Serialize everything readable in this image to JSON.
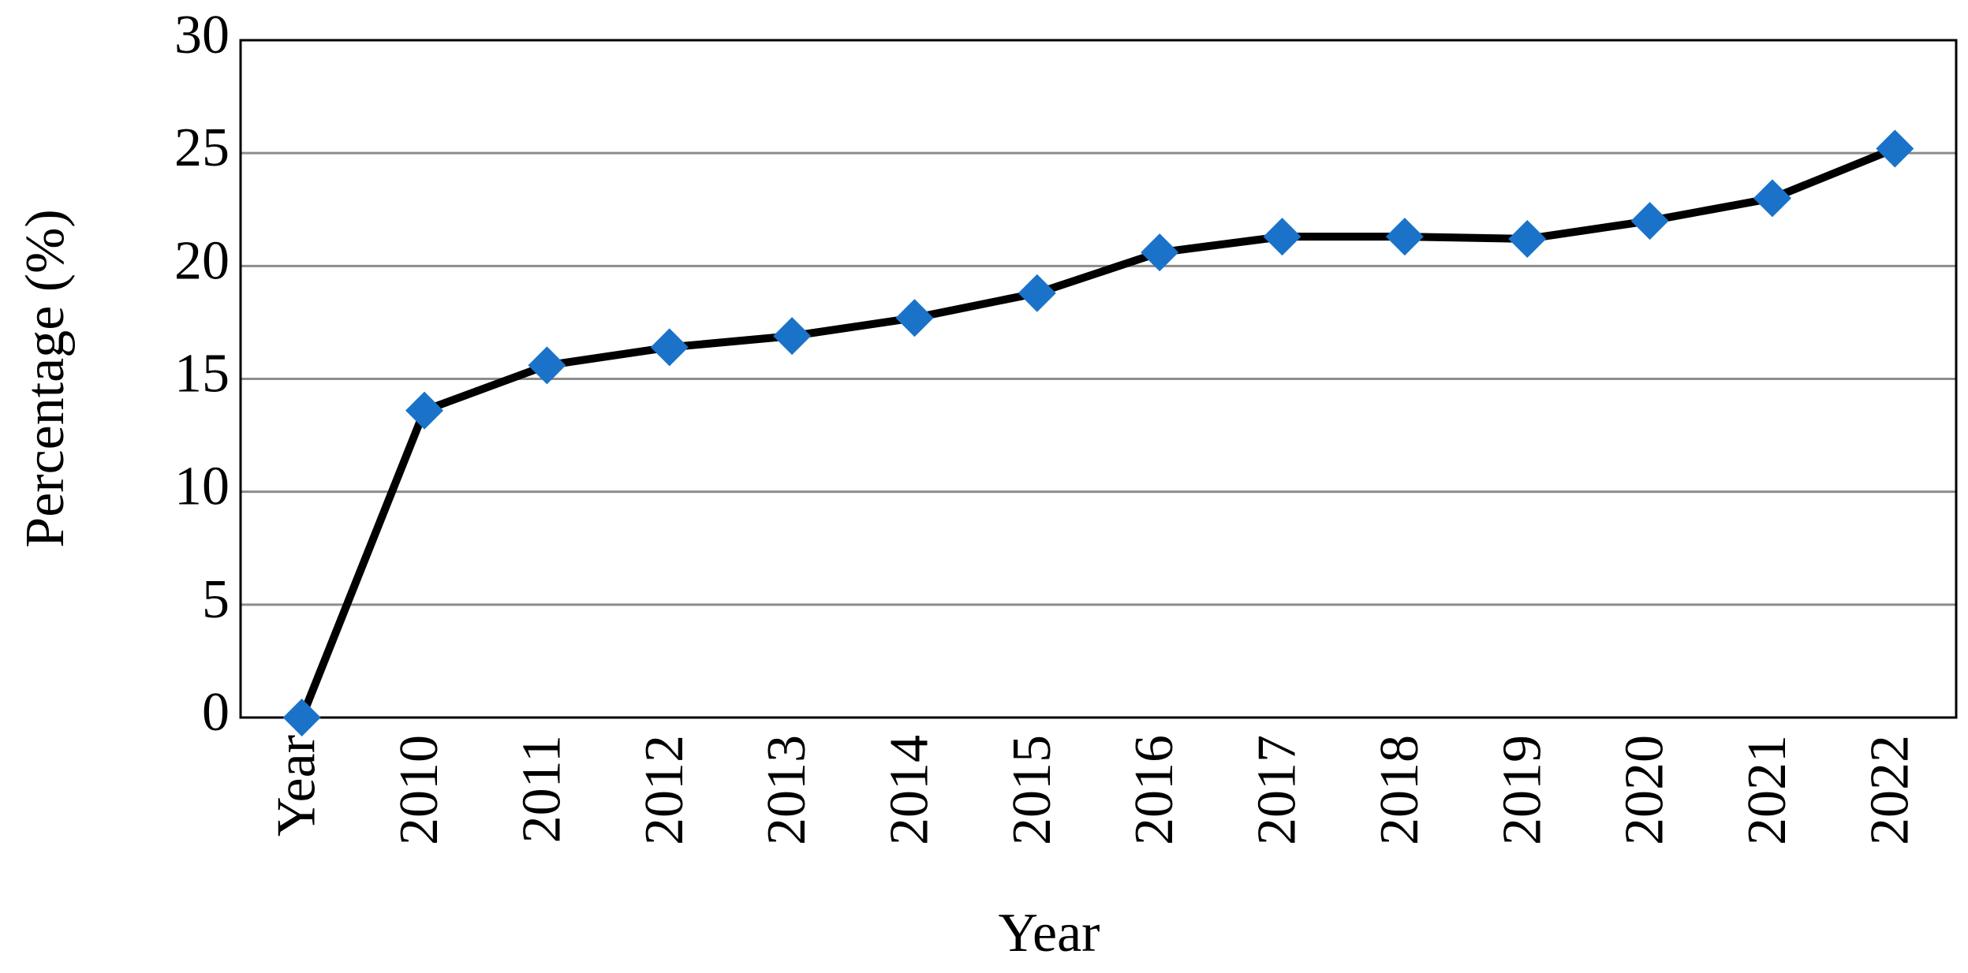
{
  "chart_data": {
    "type": "line",
    "x_label": "Year",
    "y_label": "Percentage (%)",
    "categories": [
      "Year",
      "2010",
      "2011",
      "2012",
      "2013",
      "2014",
      "2015",
      "2016",
      "2017",
      "2018",
      "2019",
      "2020",
      "2021",
      "2022"
    ],
    "values": [
      0,
      13.6,
      15.6,
      16.4,
      16.9,
      17.7,
      18.8,
      20.6,
      21.3,
      21.3,
      21.2,
      22.0,
      23.0,
      25.2
    ],
    "line_color": "#000000",
    "marker_color": "#1a73c9",
    "ylim": [
      0,
      30
    ],
    "yticks": [
      0,
      5,
      10,
      15,
      20,
      25,
      30
    ],
    "grid": true
  }
}
